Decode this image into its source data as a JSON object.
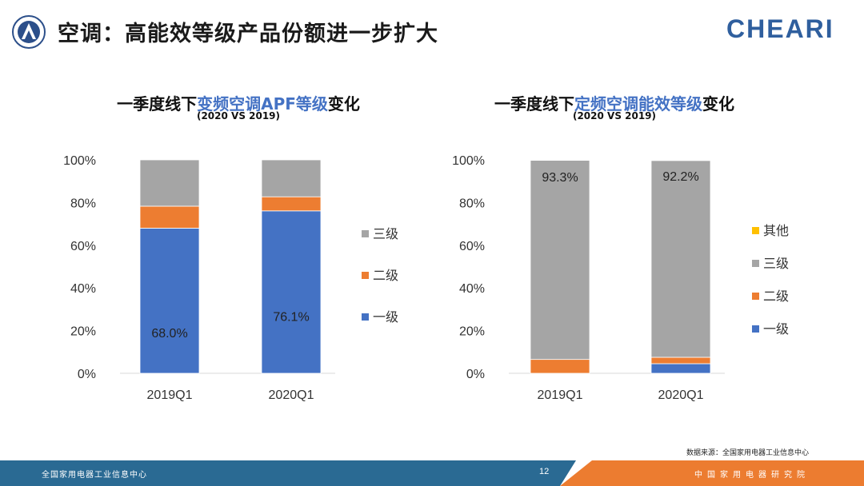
{
  "header": {
    "title": "空调：高能效等级产品份额进一步扩大",
    "brand": "CHEARI"
  },
  "colors": {
    "level1": "#4472c4",
    "level2": "#ed7d31",
    "level3": "#a5a5a5",
    "other": "#ffc000"
  },
  "charts": [
    {
      "title_prefix": "一季度线下",
      "title_highlight": "变频空调APF等级",
      "title_suffix": "变化",
      "subtitle": "(2020 VS 2019)"
    },
    {
      "title_prefix": "一季度线下",
      "title_highlight": "定频空调能效等级",
      "title_suffix": "变化",
      "subtitle": "(2020 VS 2019)"
    }
  ],
  "chart_data": [
    {
      "type": "bar",
      "stacked": true,
      "categories": [
        "2019Q1",
        "2020Q1"
      ],
      "series": [
        {
          "name": "一级",
          "values": [
            68.0,
            76.1
          ],
          "color": "#4472c4"
        },
        {
          "name": "二级",
          "values": [
            10.3,
            6.6
          ],
          "color": "#ed7d31"
        },
        {
          "name": "三级",
          "values": [
            21.7,
            17.3
          ],
          "color": "#a5a5a5"
        }
      ],
      "data_labels": [
        {
          "series": "一级",
          "category": "2019Q1",
          "text": "68.0%"
        },
        {
          "series": "一级",
          "category": "2020Q1",
          "text": "76.1%"
        }
      ],
      "yticks": [
        "0%",
        "20%",
        "40%",
        "60%",
        "80%",
        "100%"
      ],
      "ylim": [
        0,
        100
      ],
      "legend": [
        "三级",
        "二级",
        "一级"
      ],
      "legend_position": "right"
    },
    {
      "type": "bar",
      "stacked": true,
      "categories": [
        "2019Q1",
        "2020Q1"
      ],
      "series": [
        {
          "name": "一级",
          "values": [
            0,
            4.5
          ],
          "color": "#4472c4"
        },
        {
          "name": "二级",
          "values": [
            6.5,
            3.0
          ],
          "color": "#ed7d31"
        },
        {
          "name": "三级",
          "values": [
            93.3,
            92.2
          ],
          "color": "#a5a5a5"
        },
        {
          "name": "其他",
          "values": [
            0.2,
            0.3
          ],
          "color": "#ffc000"
        }
      ],
      "data_labels": [
        {
          "series": "三级",
          "category": "2019Q1",
          "text": "93.3%"
        },
        {
          "series": "三级",
          "category": "2020Q1",
          "text": "92.2%"
        }
      ],
      "yticks": [
        "0%",
        "20%",
        "40%",
        "60%",
        "80%",
        "100%"
      ],
      "ylim": [
        0,
        100
      ],
      "legend": [
        "其他",
        "三级",
        "二级",
        "一级"
      ],
      "legend_position": "right"
    }
  ],
  "source": "数据来源：全国家用电器工业信息中心",
  "footer": {
    "left": "全国家用电器工业信息中心",
    "page": "12",
    "right": "中国家用电器研究院"
  }
}
